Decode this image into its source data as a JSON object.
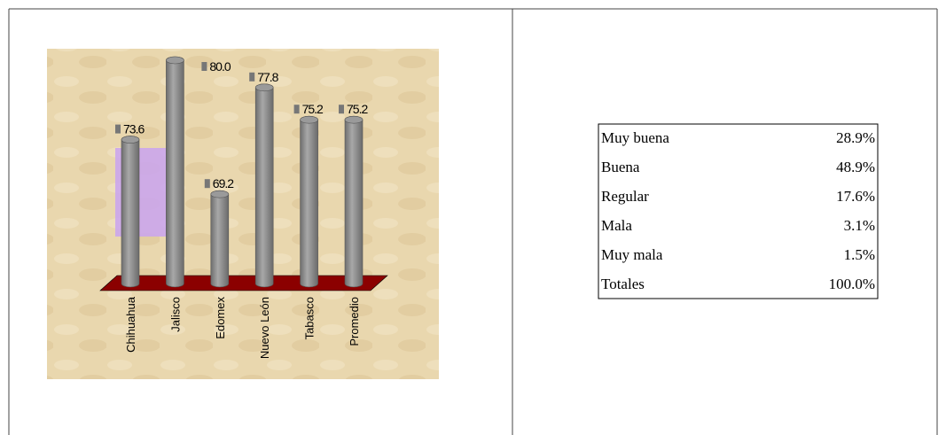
{
  "chart_data": {
    "type": "bar",
    "categories": [
      "Chihuahua",
      "Jalisco",
      "Edomex",
      "Nuevo León",
      "Tabasco",
      "Promedio"
    ],
    "values": [
      73.6,
      80,
      69.2,
      77.8,
      75.2,
      75.2
    ],
    "value_labels": [
      "73.6",
      "80.0",
      "69.2",
      "77.8",
      "75.2",
      "75.2"
    ],
    "color": "#8c8c8c",
    "ylim": [
      62,
      80
    ]
  },
  "table": {
    "rows": [
      [
        "Muy buena",
        "28.9%"
      ],
      [
        "Buena",
        "48.9%"
      ],
      [
        "Regular",
        "17.6%"
      ],
      [
        "Mala",
        "3.1%"
      ],
      [
        "Muy mala",
        "1.5%"
      ],
      [
        "Totales",
        "100.0%"
      ]
    ]
  }
}
